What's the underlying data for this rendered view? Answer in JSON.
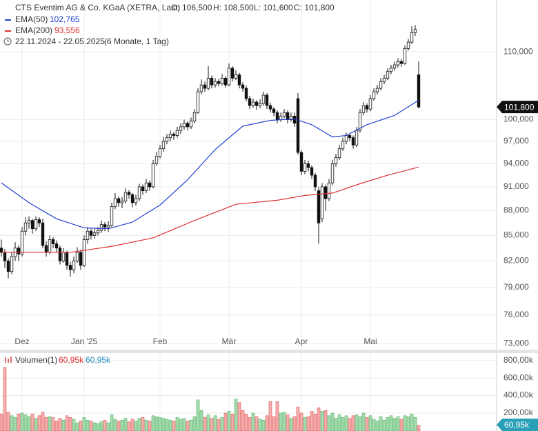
{
  "header": {
    "instrument": "CTS Eventim AG & Co. KGaA (XETRA, Last)",
    "ohlc_labels": [
      "O: 106,500",
      "H: 108,500",
      "L: 101,600",
      "C: 101,800"
    ],
    "period": "22.11.2024 - 22.05.2025",
    "period_note": "(6 Monate, 1 Tag)"
  },
  "chart_data": {
    "type": "candlestick",
    "log_scale": true,
    "grid": true,
    "categories": [
      null,
      null,
      null,
      null,
      null,
      null,
      "Dez",
      null,
      null,
      null,
      null,
      null,
      null,
      null,
      null,
      null,
      null,
      null,
      null,
      null,
      null,
      null,
      null,
      null,
      "Jan '25",
      null,
      null,
      null,
      null,
      null,
      null,
      null,
      null,
      null,
      null,
      null,
      null,
      null,
      null,
      null,
      null,
      null,
      null,
      null,
      null,
      null,
      "Feb",
      null,
      null,
      null,
      null,
      null,
      null,
      null,
      null,
      null,
      null,
      null,
      null,
      null,
      null,
      null,
      null,
      null,
      null,
      null,
      "Mär",
      null,
      null,
      null,
      null,
      null,
      null,
      null,
      null,
      null,
      null,
      null,
      null,
      null,
      null,
      null,
      null,
      null,
      null,
      null,
      null,
      "Apr",
      null,
      null,
      null,
      null,
      null,
      null,
      null,
      null,
      null,
      null,
      null,
      null,
      null,
      null,
      null,
      null,
      null,
      null,
      null,
      "Mai",
      null,
      null,
      null,
      null,
      null,
      null,
      null,
      null,
      null,
      null,
      null,
      null,
      null,
      null
    ],
    "candles": [
      [
        83.5,
        84.5,
        82.5,
        83.0
      ],
      [
        83.0,
        83.4,
        81.2,
        82.0
      ],
      [
        82.0,
        82.3,
        80.0,
        80.8
      ],
      [
        80.8,
        83.0,
        80.5,
        82.5
      ],
      [
        82.5,
        84.2,
        82.0,
        83.5
      ],
      [
        83.5,
        83.8,
        82.0,
        82.8
      ],
      [
        82.8,
        86.0,
        82.5,
        85.5
      ],
      [
        85.5,
        87.2,
        85.0,
        86.5
      ],
      [
        86.5,
        87.3,
        85.8,
        86.8
      ],
      [
        86.8,
        87.0,
        85.2,
        85.8
      ],
      [
        85.8,
        87.3,
        85.5,
        86.9
      ],
      [
        86.9,
        87.2,
        86.0,
        86.5
      ],
      [
        86.5,
        87.0,
        83.5,
        83.8
      ],
      [
        83.8,
        84.3,
        82.5,
        83.0
      ],
      [
        83.0,
        85.0,
        82.8,
        84.5
      ],
      [
        84.5,
        84.8,
        83.5,
        84.0
      ],
      [
        84.0,
        84.4,
        83.0,
        83.5
      ],
      [
        83.5,
        83.8,
        81.6,
        82.0
      ],
      [
        82.0,
        83.5,
        81.8,
        83.0
      ],
      [
        83.0,
        83.2,
        81.0,
        81.5
      ],
      [
        81.5,
        81.9,
        80.2,
        81.0
      ],
      [
        81.0,
        82.5,
        80.6,
        82.0
      ],
      [
        82.0,
        83.6,
        81.8,
        83.0
      ],
      [
        83.0,
        83.3,
        81.0,
        81.5
      ],
      [
        81.5,
        85.0,
        81.3,
        84.5
      ],
      [
        84.5,
        86.0,
        84.0,
        85.5
      ],
      [
        85.5,
        85.8,
        84.5,
        85.0
      ],
      [
        85.0,
        85.8,
        84.6,
        85.3
      ],
      [
        85.3,
        86.0,
        85.0,
        85.6
      ],
      [
        85.6,
        86.8,
        85.3,
        86.3
      ],
      [
        86.3,
        86.6,
        85.5,
        86.0
      ],
      [
        86.0,
        86.7,
        85.4,
        86.2
      ],
      [
        86.2,
        89.0,
        86.0,
        88.5
      ],
      [
        88.5,
        90.2,
        88.2,
        89.5
      ],
      [
        89.5,
        89.8,
        88.5,
        89.0
      ],
      [
        89.0,
        89.7,
        88.3,
        89.2
      ],
      [
        89.2,
        90.8,
        88.9,
        90.3
      ],
      [
        90.3,
        90.6,
        89.5,
        90.0
      ],
      [
        90.0,
        90.2,
        88.4,
        89.0
      ],
      [
        89.0,
        90.0,
        88.6,
        89.5
      ],
      [
        89.5,
        91.4,
        89.2,
        91.0
      ],
      [
        91.0,
        91.3,
        90.0,
        90.5
      ],
      [
        90.5,
        92.0,
        90.2,
        91.5
      ],
      [
        91.5,
        91.8,
        90.5,
        91.0
      ],
      [
        91.0,
        94.5,
        90.8,
        94.0
      ],
      [
        94.0,
        95.6,
        93.7,
        95.0
      ],
      [
        95.0,
        96.5,
        94.7,
        96.0
      ],
      [
        96.0,
        97.6,
        95.6,
        97.0
      ],
      [
        97.0,
        98.0,
        96.6,
        97.5
      ],
      [
        97.5,
        98.5,
        97.0,
        98.0
      ],
      [
        98.0,
        98.3,
        97.2,
        97.8
      ],
      [
        97.8,
        99.0,
        97.5,
        98.5
      ],
      [
        98.5,
        99.5,
        98.0,
        99.0
      ],
      [
        99.0,
        100.0,
        98.6,
        99.5
      ],
      [
        99.5,
        99.8,
        98.5,
        99.0
      ],
      [
        99.0,
        100.3,
        98.7,
        99.8
      ],
      [
        99.8,
        101.5,
        99.5,
        101.0
      ],
      [
        101.0,
        104.5,
        100.8,
        104.0
      ],
      [
        104.0,
        105.8,
        103.6,
        105.0
      ],
      [
        105.0,
        105.5,
        104.0,
        104.5
      ],
      [
        104.5,
        107.8,
        104.2,
        106.0
      ],
      [
        106.0,
        106.4,
        104.5,
        105.0
      ],
      [
        105.0,
        106.0,
        104.6,
        105.5
      ],
      [
        105.5,
        105.9,
        104.8,
        105.2
      ],
      [
        105.2,
        106.6,
        104.9,
        106.0
      ],
      [
        106.0,
        106.3,
        104.6,
        105.0
      ],
      [
        105.0,
        108.2,
        104.8,
        107.5
      ],
      [
        107.5,
        107.8,
        105.5,
        106.0
      ],
      [
        106.0,
        107.2,
        105.7,
        106.5
      ],
      [
        106.5,
        106.8,
        104.5,
        105.0
      ],
      [
        105.0,
        105.4,
        104.0,
        104.5
      ],
      [
        104.5,
        104.9,
        102.6,
        103.0
      ],
      [
        103.0,
        103.4,
        101.5,
        102.0
      ],
      [
        102.0,
        103.0,
        101.7,
        102.5
      ],
      [
        102.5,
        102.8,
        101.4,
        102.0
      ],
      [
        102.0,
        102.9,
        101.6,
        102.3
      ],
      [
        102.3,
        104.0,
        102.0,
        103.5
      ],
      [
        103.5,
        103.8,
        101.5,
        102.0
      ],
      [
        102.0,
        102.4,
        101.0,
        101.5
      ],
      [
        101.5,
        101.8,
        100.5,
        101.0
      ],
      [
        101.0,
        101.3,
        99.5,
        100.0
      ],
      [
        100.0,
        101.0,
        99.7,
        100.5
      ],
      [
        100.5,
        101.5,
        100.2,
        101.0
      ],
      [
        101.0,
        101.3,
        99.5,
        100.0
      ],
      [
        100.0,
        101.0,
        99.7,
        100.5
      ],
      [
        100.5,
        101.0,
        99.0,
        99.5
      ],
      [
        103.0,
        103.8,
        95.2,
        95.5
      ],
      [
        95.5,
        95.8,
        92.5,
        93.0
      ],
      [
        93.0,
        94.5,
        92.6,
        94.0
      ],
      [
        94.0,
        94.4,
        93.0,
        93.5
      ],
      [
        93.5,
        93.8,
        92.0,
        92.5
      ],
      [
        92.5,
        92.8,
        90.5,
        91.0
      ],
      [
        90.5,
        91.0,
        84.0,
        86.5
      ],
      [
        87.0,
        91.5,
        86.6,
        91.0
      ],
      [
        91.0,
        91.3,
        88.0,
        89.5
      ],
      [
        89.5,
        92.0,
        89.2,
        91.5
      ],
      [
        91.5,
        94.5,
        91.2,
        94.0
      ],
      [
        94.0,
        95.3,
        93.6,
        94.8
      ],
      [
        94.8,
        96.5,
        94.5,
        96.0
      ],
      [
        96.0,
        97.5,
        95.7,
        97.0
      ],
      [
        97.0,
        98.2,
        96.6,
        97.8
      ],
      [
        97.8,
        98.1,
        97.0,
        97.5
      ],
      [
        97.5,
        97.8,
        96.0,
        96.5
      ],
      [
        96.5,
        99.0,
        96.2,
        98.5
      ],
      [
        98.5,
        101.5,
        98.2,
        101.0
      ],
      [
        101.0,
        102.5,
        100.6,
        102.0
      ],
      [
        102.0,
        102.3,
        101.0,
        101.5
      ],
      [
        101.5,
        103.5,
        101.2,
        103.0
      ],
      [
        103.0,
        104.5,
        102.7,
        104.0
      ],
      [
        104.0,
        105.0,
        103.6,
        104.5
      ],
      [
        104.5,
        106.0,
        104.2,
        105.5
      ],
      [
        105.5,
        106.5,
        105.1,
        106.0
      ],
      [
        106.0,
        107.5,
        105.7,
        107.0
      ],
      [
        107.0,
        108.0,
        106.6,
        107.5
      ],
      [
        107.5,
        108.5,
        107.1,
        108.0
      ],
      [
        108.0,
        109.0,
        107.6,
        108.5
      ],
      [
        108.5,
        108.9,
        107.7,
        108.2
      ],
      [
        108.2,
        111.0,
        108.0,
        110.5
      ],
      [
        110.5,
        112.0,
        110.2,
        111.5
      ],
      [
        111.5,
        114.0,
        111.2,
        113.0
      ],
      [
        113.0,
        114.2,
        112.5,
        113.5
      ],
      [
        106.5,
        108.5,
        101.6,
        101.8
      ]
    ],
    "last_label": "101,800",
    "ylim": [
      72.4,
      118.3
    ],
    "yticks": [
      {
        "value": 73,
        "label": "73,000"
      },
      {
        "value": 76,
        "label": "76,000"
      },
      {
        "value": 79,
        "label": "79,000"
      },
      {
        "value": 82,
        "label": "82,000"
      },
      {
        "value": 85,
        "label": "85,000"
      },
      {
        "value": 88,
        "label": "88,000"
      },
      {
        "value": 91,
        "label": "91,000"
      },
      {
        "value": 94,
        "label": "94,000"
      },
      {
        "value": 97,
        "label": "97,000"
      },
      {
        "value": 100,
        "label": "100,000"
      },
      {
        "value": 110,
        "label": "110,000"
      }
    ],
    "series": [
      {
        "name": "EMA(50)",
        "color": "#1f3fd1",
        "last_label": "102,765",
        "x": [
          0,
          8,
          16,
          24,
          31,
          38,
          46,
          54,
          62,
          70,
          78,
          85,
          90,
          96,
          100,
          106,
          114,
          121
        ],
        "values": [
          91.5,
          89.0,
          87.0,
          85.9,
          85.8,
          86.6,
          88.7,
          91.9,
          95.9,
          99.1,
          99.9,
          100.1,
          99.3,
          97.6,
          97.8,
          99.3,
          100.6,
          102.765
        ]
      },
      {
        "name": "EMA(200)",
        "color": "#e03030",
        "last_label": "93,556",
        "x": [
          0,
          20,
          32,
          44,
          56,
          68,
          80,
          88,
          96,
          104,
          112,
          121
        ],
        "values": [
          83.0,
          83.0,
          83.7,
          84.7,
          86.8,
          88.8,
          89.3,
          89.9,
          90.2,
          91.4,
          92.5,
          93.556
        ]
      }
    ],
    "volume": {
      "name": "Volumen(1)",
      "last_label": "60,95k",
      "ylim": [
        0,
        860
      ],
      "yticks": [
        {
          "value": 200,
          "label": "200,00k"
        },
        {
          "value": 400,
          "label": "400,00k"
        },
        {
          "value": 600,
          "label": "600,00k"
        },
        {
          "value": 800,
          "label": "800,00k"
        }
      ],
      "values": [
        190,
        720,
        210,
        170,
        150,
        190,
        200,
        180,
        160,
        190,
        140,
        170,
        210,
        150,
        160,
        150,
        110,
        140,
        120,
        170,
        150,
        130,
        90,
        110,
        150,
        120,
        110,
        90,
        80,
        100,
        120,
        90,
        180,
        130,
        110,
        120,
        140,
        100,
        130,
        110,
        140,
        150,
        120,
        110,
        170,
        160,
        150,
        140,
        130,
        120,
        110,
        150,
        130,
        140,
        110,
        120,
        160,
        350,
        230,
        150,
        180,
        140,
        170,
        130,
        150,
        200,
        220,
        190,
        360,
        320,
        230,
        190,
        150,
        200,
        160,
        130,
        120,
        170,
        330,
        160,
        330,
        200,
        210,
        180,
        140,
        160,
        270,
        200,
        150,
        160,
        220,
        190,
        260,
        220,
        230,
        170,
        200,
        140,
        180,
        150,
        170,
        140,
        170,
        180,
        160,
        200,
        150,
        170,
        130,
        110,
        160,
        120,
        150,
        170,
        140,
        160,
        130,
        170,
        160,
        190,
        150,
        60.95
      ]
    }
  }
}
